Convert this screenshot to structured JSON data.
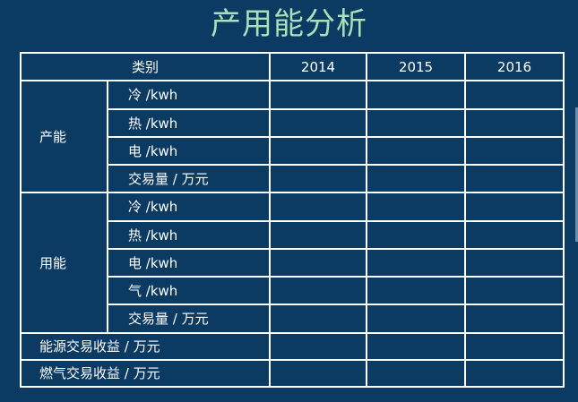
{
  "title": "产用能分析",
  "header": {
    "category": "类别",
    "years": [
      "2014",
      "2015",
      "2016"
    ]
  },
  "groups": [
    {
      "label": "产能",
      "rows": [
        "冷 /kwh",
        "热 /kwh",
        "电 /kwh",
        "交易量 / 万元"
      ]
    },
    {
      "label": "用能",
      "rows": [
        "冷 /kwh",
        "热 /kwh",
        "电 /kwh",
        "气 /kwh",
        "交易量 / 万元"
      ]
    }
  ],
  "summary_rows": [
    "能源交易收益 / 万元",
    "燃气交易收益 / 万元"
  ]
}
